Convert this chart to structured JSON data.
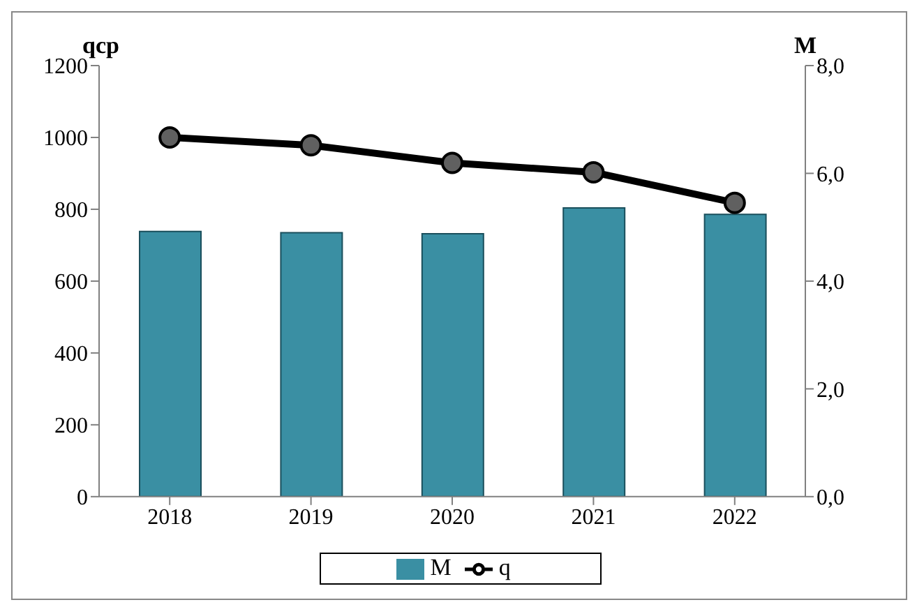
{
  "chart_data": {
    "type": "bar",
    "categories": [
      "2018",
      "2019",
      "2020",
      "2021",
      "2022"
    ],
    "ylabel": "qcp",
    "y2label": "M",
    "ylim": [
      0,
      1200
    ],
    "yticks": [
      0,
      200,
      400,
      600,
      800,
      1000,
      1200
    ],
    "y2lim": [
      0,
      8
    ],
    "y2ticks": [
      {
        "value": 0,
        "label": "0,0"
      },
      {
        "value": 2,
        "label": "2,0"
      },
      {
        "value": 4,
        "label": "4,0"
      },
      {
        "value": 6,
        "label": "6,0"
      },
      {
        "value": 8,
        "label": "8,0"
      }
    ],
    "series": [
      {
        "name": "M",
        "axis": "y2",
        "color": "#3a8fa3",
        "values": [
          4.92,
          4.9,
          4.88,
          5.36,
          5.24
        ]
      },
      {
        "name": "q",
        "type": "line",
        "color": "#000000",
        "values": [
          1000,
          978,
          929,
          903,
          818
        ]
      }
    ],
    "marker": "circle",
    "grid": false,
    "legend": "bottom"
  }
}
